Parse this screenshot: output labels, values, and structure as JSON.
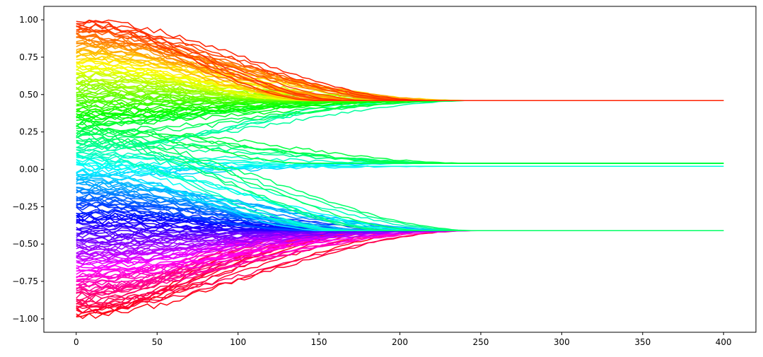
{
  "chart_data": {
    "type": "line",
    "title": "",
    "xlabel": "",
    "ylabel": "",
    "xlim": [
      -20,
      420
    ],
    "ylim": [
      -1.09,
      1.09
    ],
    "x_ticks": [
      0,
      50,
      100,
      150,
      200,
      250,
      300,
      350,
      400
    ],
    "x_tick_labels": [
      "0",
      "50",
      "100",
      "150",
      "200",
      "250",
      "300",
      "350",
      "400"
    ],
    "y_ticks": [
      -1.0,
      -0.75,
      -0.5,
      -0.25,
      0.0,
      0.25,
      0.5,
      0.75,
      1.0
    ],
    "y_tick_labels": [
      "−1.00",
      "−0.75",
      "−0.50",
      "−0.25",
      "0.00",
      "0.25",
      "0.50",
      "0.75",
      "1.00"
    ],
    "grid": false,
    "legend": "none",
    "colormap": "hsv",
    "series_summary": {
      "x_range": [
        0,
        400
      ],
      "initial_value_range": [
        -1.0,
        1.0
      ],
      "consensus_values": [
        0.46,
        0.04,
        0.02,
        -0.41
      ]
    }
  }
}
